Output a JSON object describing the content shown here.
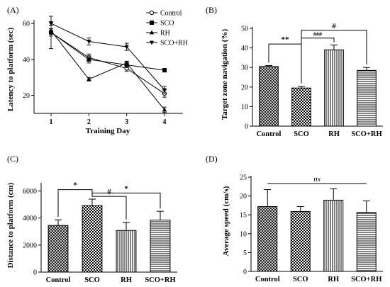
{
  "chart_data": [
    {
      "panel": "(A)",
      "type": "line",
      "xlabel": "Training Day",
      "ylabel": "Latency to platform (sec)",
      "x": [
        1,
        2,
        3,
        4
      ],
      "xticks": [
        "1",
        "2",
        "3",
        "4"
      ],
      "yticks": [
        "20",
        "40",
        "60"
      ],
      "ylim": [
        10,
        62
      ],
      "legend_position": "top-right",
      "series": [
        {
          "name": "Control",
          "marker": "open-circle",
          "values": [
            55,
            41,
            35,
            21
          ],
          "errors": [
            2,
            2,
            1.5,
            2
          ]
        },
        {
          "name": "SCO",
          "marker": "square",
          "values": [
            55,
            40,
            37,
            34
          ],
          "errors": [
            9,
            2,
            1.5,
            1
          ]
        },
        {
          "name": "RH",
          "marker": "triangle-up",
          "values": [
            56,
            29,
            38,
            12
          ],
          "errors": [
            1,
            1,
            1,
            1.5
          ]
        },
        {
          "name": "SCO+RH",
          "marker": "triangle-down",
          "values": [
            60,
            50,
            47,
            23
          ],
          "errors": [
            1,
            2,
            2,
            2
          ]
        }
      ]
    },
    {
      "panel": "(B)",
      "type": "bar",
      "ylabel": "Target zone navigation (%)",
      "categories": [
        "Control",
        "SCO",
        "RH",
        "SCO+RH"
      ],
      "values": [
        30.5,
        19.5,
        39,
        28.5
      ],
      "errors": [
        0.5,
        0.8,
        2.5,
        1.5
      ],
      "patterns": [
        "hatch-dense",
        "checker",
        "vertical",
        "horizontal"
      ],
      "ylim": [
        0,
        50
      ],
      "yticks": [
        "0",
        "10",
        "20",
        "30",
        "40",
        "50"
      ],
      "annotations": [
        {
          "text": "**",
          "from": 0,
          "to": 1,
          "level": 42
        },
        {
          "text": "###",
          "from": 1,
          "to": 2,
          "level": 45
        },
        {
          "text": "#",
          "from": 1,
          "to": 3,
          "level": 49
        }
      ]
    },
    {
      "panel": "(C)",
      "type": "bar",
      "ylabel": "Distance to platform (cm)",
      "categories": [
        "Control",
        "SCO",
        "RH",
        "SCO+RH"
      ],
      "values": [
        3450,
        4920,
        3080,
        3850
      ],
      "errors": [
        420,
        480,
        600,
        650
      ],
      "patterns": [
        "hatch-dense",
        "checker",
        "vertical",
        "horizontal"
      ],
      "ylim": [
        0,
        6500
      ],
      "yticks": [
        "0",
        "2000",
        "4000",
        "6000"
      ],
      "annotations": [
        {
          "text": "*",
          "from": 0,
          "to": 1,
          "level": 6100
        },
        {
          "text": "#",
          "from": 1,
          "to": 2,
          "level": 5600
        },
        {
          "text": "*",
          "from": 1,
          "to": 3,
          "level": 5850
        }
      ]
    },
    {
      "panel": "(D)",
      "type": "bar",
      "ylabel": "Average speed (cm/s)",
      "categories": [
        "Control",
        "SCO",
        "RH",
        "SCO+RH"
      ],
      "values": [
        17.2,
        15.9,
        18.9,
        15.6
      ],
      "errors": [
        4.5,
        1.3,
        3,
        3.1
      ],
      "patterns": [
        "hatch-dense",
        "checker",
        "vertical",
        "horizontal"
      ],
      "ylim": [
        0,
        25
      ],
      "yticks": [
        "0",
        "5",
        "10",
        "15",
        "20",
        "25"
      ],
      "annotations": [
        {
          "text": "ns",
          "from": 0,
          "to": 3,
          "level": 23.3,
          "italic": true,
          "plain_line": true
        }
      ]
    }
  ]
}
